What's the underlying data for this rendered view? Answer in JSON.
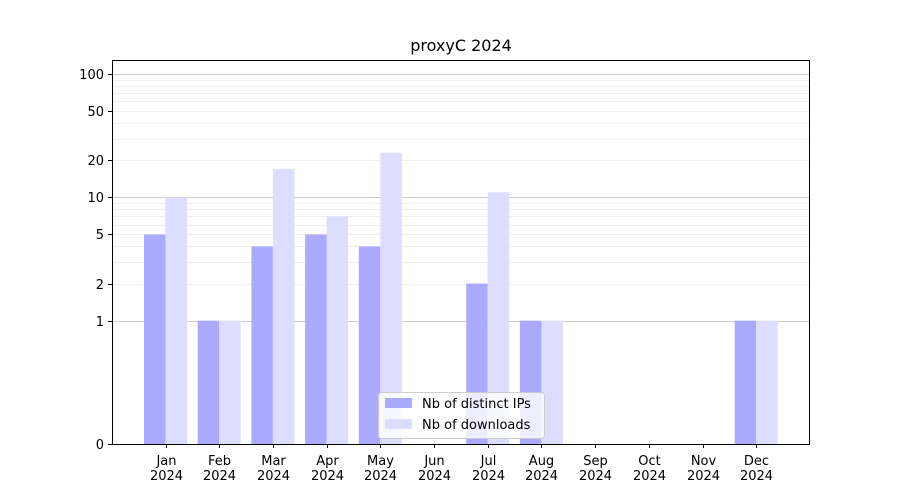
{
  "chart_data": {
    "type": "bar",
    "title": "proxyC 2024",
    "xlabel": "",
    "ylabel": "",
    "y_scale": "symlog",
    "ylim": [
      0,
      130
    ],
    "y_ticks": [
      0,
      1,
      2,
      5,
      10,
      20,
      50,
      100
    ],
    "y_tick_labels": [
      "0",
      "1",
      "2",
      "5",
      "10",
      "20",
      "50",
      "100"
    ],
    "grid": "y",
    "legend_position": "lower-center",
    "categories": [
      [
        "Jan",
        "2024"
      ],
      [
        "Feb",
        "2024"
      ],
      [
        "Mar",
        "2024"
      ],
      [
        "Apr",
        "2024"
      ],
      [
        "May",
        "2024"
      ],
      [
        "Jun",
        "2024"
      ],
      [
        "Jul",
        "2024"
      ],
      [
        "Aug",
        "2024"
      ],
      [
        "Sep",
        "2024"
      ],
      [
        "Oct",
        "2024"
      ],
      [
        "Nov",
        "2024"
      ],
      [
        "Dec",
        "2024"
      ]
    ],
    "series": [
      {
        "name": "Nb of distinct IPs",
        "color": "#aaaaff",
        "values": [
          5,
          1,
          4,
          5,
          4,
          0,
          2,
          1,
          0,
          0,
          0,
          1
        ]
      },
      {
        "name": "Nb of downloads",
        "color": "#ddddff",
        "values": [
          10,
          1,
          17,
          7,
          23,
          0,
          11,
          1,
          0,
          0,
          0,
          1
        ]
      }
    ]
  }
}
